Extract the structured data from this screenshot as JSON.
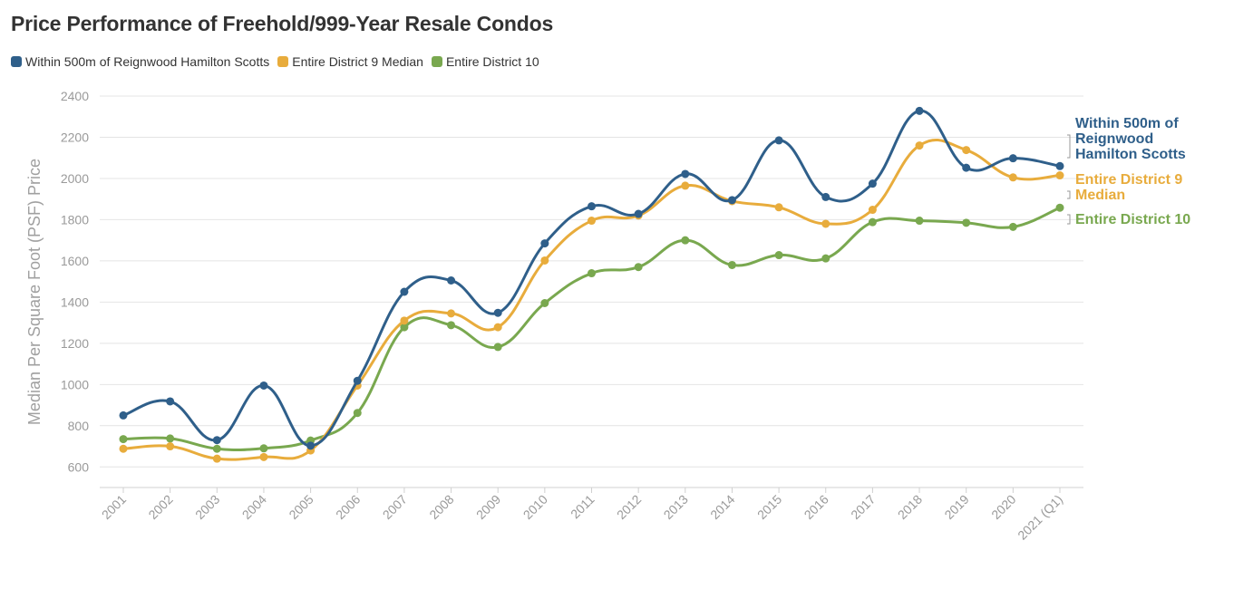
{
  "chart_data": {
    "type": "line",
    "title": "Price Performance of Freehold/999-Year Resale Condos",
    "xlabel": "",
    "ylabel": "Median Per Square Foot (PSF) Price",
    "ylim": [
      500,
      2400
    ],
    "yticks": [
      600,
      800,
      1000,
      1200,
      1400,
      1600,
      1800,
      2000,
      2200,
      2400
    ],
    "grid": true,
    "legend_position": "top-left",
    "categories": [
      "2001",
      "2002",
      "2003",
      "2004",
      "2005",
      "2006",
      "2007",
      "2008",
      "2009",
      "2010",
      "2011",
      "2012",
      "2013",
      "2014",
      "2015",
      "2016",
      "2017",
      "2018",
      "2019",
      "2020",
      "2021 (Q1)"
    ],
    "series": [
      {
        "name": "Within 500m of Reignwood Hamilton Scotts",
        "end_label_lines": [
          "Within 500m of",
          "Reignwood",
          "Hamilton Scotts"
        ],
        "color": "#2f5f8a",
        "values": [
          850,
          918,
          730,
          995,
          703,
          1018,
          1450,
          1505,
          1348,
          1685,
          1865,
          1828,
          2022,
          1895,
          2185,
          1910,
          1975,
          2328,
          2052,
          2098,
          2060
        ]
      },
      {
        "name": "Entire District 9 Median",
        "end_label_lines": [
          "Entire District 9",
          "Median"
        ],
        "color": "#e8ac3c",
        "values": [
          688,
          700,
          640,
          648,
          680,
          995,
          1310,
          1345,
          1278,
          1602,
          1795,
          1820,
          1965,
          1890,
          1860,
          1780,
          1848,
          2160,
          2138,
          2005,
          2015
        ]
      },
      {
        "name": "Entire District 10",
        "end_label_lines": [
          "Entire District 10"
        ],
        "color": "#79a84f",
        "values": [
          735,
          738,
          688,
          690,
          728,
          862,
          1278,
          1288,
          1182,
          1395,
          1540,
          1570,
          1700,
          1580,
          1628,
          1612,
          1788,
          1795,
          1785,
          1765,
          1858
        ]
      }
    ]
  }
}
